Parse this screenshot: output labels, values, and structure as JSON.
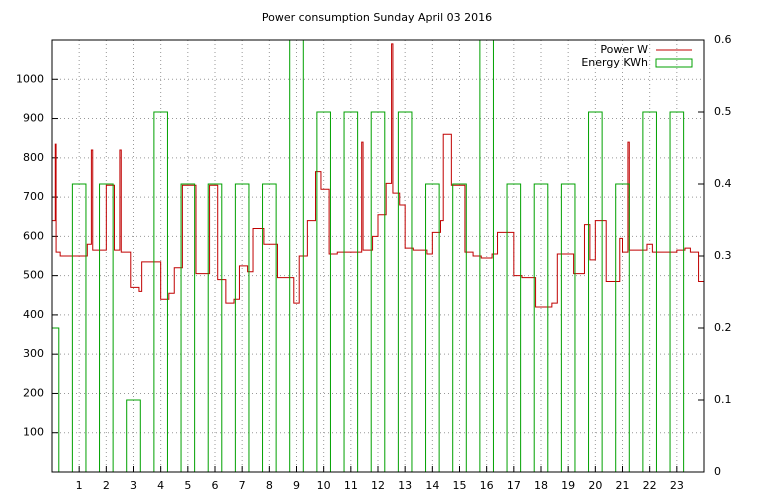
{
  "chart_data": {
    "type": "step-boxes",
    "title": "Power consumption Sunday April 03 2016",
    "xlim": [
      0,
      24
    ],
    "xticks": [
      1,
      2,
      3,
      4,
      5,
      6,
      7,
      8,
      9,
      10,
      11,
      12,
      13,
      14,
      15,
      16,
      17,
      18,
      19,
      20,
      21,
      22,
      23
    ],
    "ylim": [
      0,
      1100
    ],
    "yticks": [
      100,
      200,
      300,
      400,
      500,
      600,
      700,
      800,
      900,
      1000
    ],
    "y2lim": [
      0,
      0.6
    ],
    "y2ticks": [
      0,
      0.1,
      0.2,
      0.3,
      0.4,
      0.5,
      0.6
    ],
    "grid": true,
    "legend": "top-right",
    "series": [
      {
        "name": "Power W",
        "color": "#c00000",
        "kind": "step",
        "x": [
          0,
          0.12,
          0.15,
          0.3,
          1.3,
          1.45,
          1.5,
          2.0,
          2.3,
          2.5,
          2.55,
          2.9,
          3.2,
          3.3,
          4.0,
          4.3,
          4.5,
          4.8,
          5.3,
          5.8,
          6.1,
          6.4,
          6.7,
          6.9,
          7.2,
          7.4,
          7.8,
          8.3,
          8.9,
          9.1,
          9.4,
          9.7,
          9.9,
          10.2,
          10.5,
          11.4,
          11.45,
          11.8,
          12.0,
          12.3,
          12.5,
          12.55,
          12.8,
          13.0,
          13.3,
          13.8,
          14.0,
          14.3,
          14.4,
          14.7,
          15.2,
          15.5,
          15.8,
          16.2,
          16.4,
          17.0,
          17.3,
          17.8,
          18.4,
          18.6,
          19.2,
          19.6,
          19.8,
          20.0,
          20.4,
          20.9,
          21.0,
          21.2,
          21.25,
          21.9,
          22.1,
          22.5,
          23.0,
          23.3,
          23.5,
          23.8
        ],
        "values": [
          640,
          835,
          560,
          550,
          580,
          820,
          565,
          730,
          565,
          820,
          560,
          470,
          460,
          535,
          440,
          455,
          520,
          730,
          505,
          730,
          490,
          430,
          440,
          525,
          510,
          620,
          580,
          495,
          430,
          550,
          640,
          765,
          720,
          555,
          560,
          840,
          565,
          600,
          655,
          735,
          1090,
          710,
          680,
          570,
          565,
          555,
          610,
          640,
          860,
          730,
          560,
          550,
          545,
          555,
          610,
          500,
          495,
          420,
          430,
          555,
          505,
          630,
          540,
          640,
          485,
          595,
          560,
          840,
          565,
          580,
          560,
          560,
          565,
          570,
          560,
          485
        ]
      },
      {
        "name": "Energy KWh",
        "color": "#00a000",
        "kind": "boxes",
        "axis": "y2",
        "x": [
          0,
          1,
          2,
          3,
          4,
          5,
          6,
          7,
          8,
          9,
          10,
          11,
          12,
          13,
          14,
          15,
          16,
          17,
          18,
          19,
          20,
          21,
          22,
          23
        ],
        "values": [
          0.2,
          0.4,
          0.4,
          0.1,
          0.5,
          0.4,
          0.4,
          0.4,
          0.4,
          0.6,
          0.5,
          0.5,
          0.5,
          0.5,
          0.4,
          0.4,
          0.6,
          0.4,
          0.4,
          0.4,
          0.5,
          0.4,
          0.5,
          0.5
        ]
      }
    ]
  }
}
